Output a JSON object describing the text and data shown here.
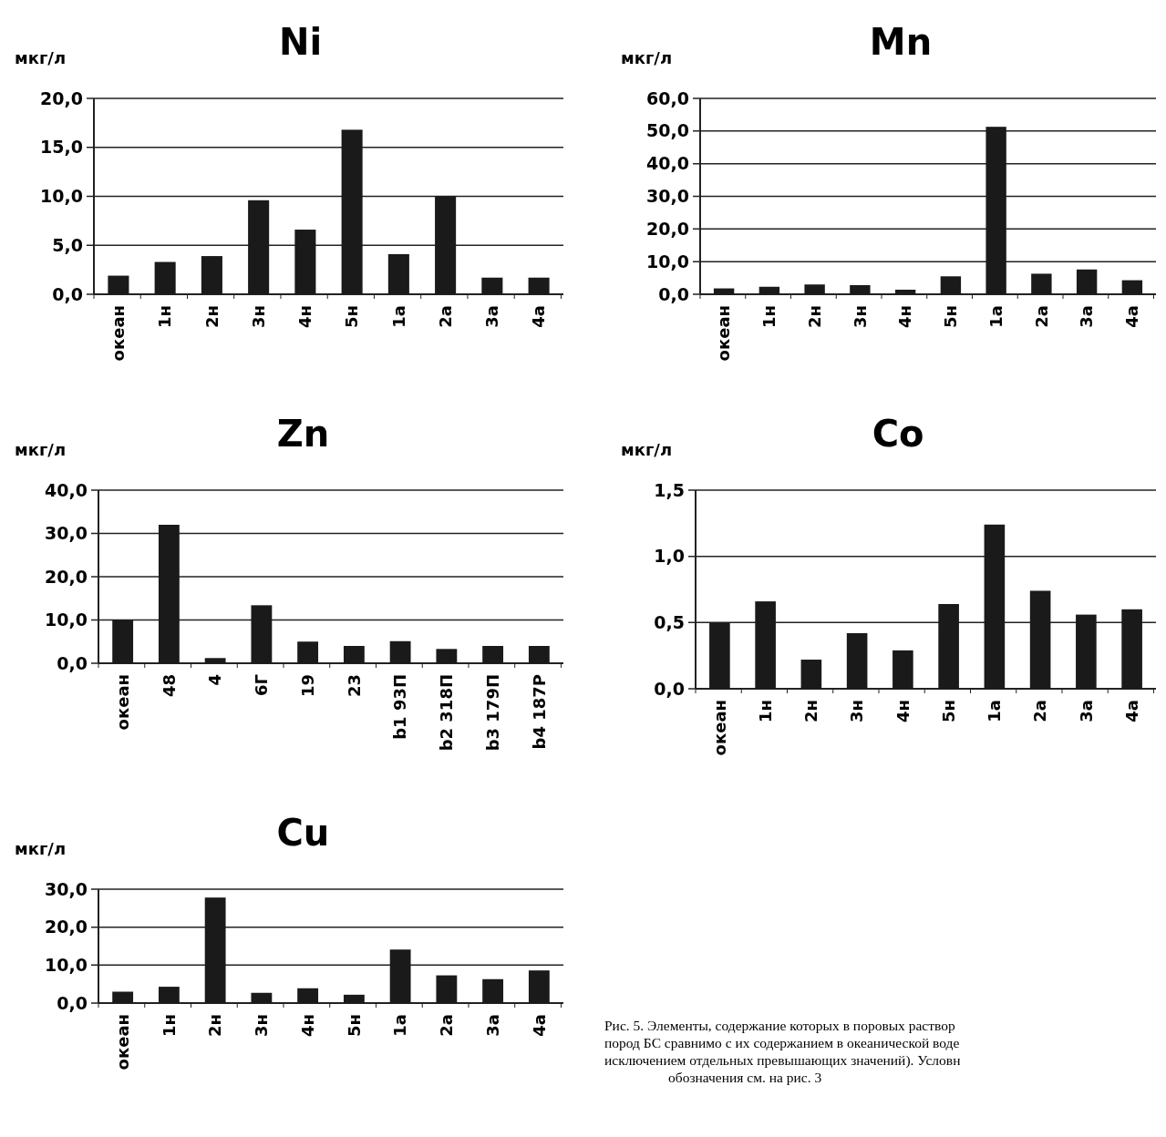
{
  "chart_data": [
    {
      "type": "bar",
      "title": "Ni",
      "ylabel": "мкг/л",
      "categories": [
        "океан",
        "1н",
        "2н",
        "3н",
        "4н",
        "5н",
        "1а",
        "2а",
        "3а",
        "4а"
      ],
      "values": [
        1.9,
        3.3,
        3.9,
        9.6,
        6.6,
        16.8,
        4.1,
        10.0,
        1.7,
        1.7
      ],
      "color": "#1a1a1a",
      "ylim": [
        0,
        20
      ],
      "yticks": [
        {
          "value": 0,
          "label": "0,0"
        },
        {
          "value": 5,
          "label": "5,0"
        },
        {
          "value": 10,
          "label": "10,0"
        },
        {
          "value": 15,
          "label": "15,0"
        },
        {
          "value": 20,
          "label": "20,0"
        }
      ],
      "grid": "y"
    },
    {
      "type": "bar",
      "title": "Mn",
      "ylabel": "мкг/л",
      "categories": [
        "океан",
        "1н",
        "2н",
        "3н",
        "4н",
        "5н",
        "1а",
        "2а",
        "3а",
        "4а"
      ],
      "values": [
        1.8,
        2.3,
        3.0,
        2.8,
        1.4,
        5.5,
        51.3,
        6.3,
        7.6,
        4.3
      ],
      "color": "#1a1a1a",
      "ylim": [
        0,
        60
      ],
      "yticks": [
        {
          "value": 0,
          "label": "0,0"
        },
        {
          "value": 10,
          "label": "10,0"
        },
        {
          "value": 20,
          "label": "20,0"
        },
        {
          "value": 30,
          "label": "30,0"
        },
        {
          "value": 40,
          "label": "40,0"
        },
        {
          "value": 50,
          "label": "50,0"
        },
        {
          "value": 60,
          "label": "60,0"
        }
      ],
      "grid": "y"
    },
    {
      "type": "bar",
      "title": "Zn",
      "ylabel": "мкг/л",
      "categories": [
        "океан",
        "48",
        "4",
        "6Г",
        "19",
        "23",
        "b1  93П",
        "b2 318П",
        "b3  179П",
        "b4 187Р"
      ],
      "values": [
        10.0,
        32.0,
        1.2,
        13.4,
        5.0,
        4.0,
        5.1,
        3.3,
        4.0,
        4.0
      ],
      "color": "#1a1a1a",
      "ylim": [
        0,
        40
      ],
      "yticks": [
        {
          "value": 0,
          "label": "0,0"
        },
        {
          "value": 10,
          "label": "10,0"
        },
        {
          "value": 20,
          "label": "20,0"
        },
        {
          "value": 30,
          "label": "30,0"
        },
        {
          "value": 40,
          "label": "40,0"
        }
      ],
      "grid": "y"
    },
    {
      "type": "bar",
      "title": "Co",
      "ylabel": "мкг/л",
      "categories": [
        "океан",
        "1н",
        "2н",
        "3н",
        "4н",
        "5н",
        "1а",
        "2а",
        "3а",
        "4а"
      ],
      "values": [
        0.5,
        0.66,
        0.22,
        0.42,
        0.29,
        0.64,
        1.24,
        0.74,
        0.56,
        0.6
      ],
      "color": "#1a1a1a",
      "ylim": [
        0,
        1.5
      ],
      "yticks": [
        {
          "value": 0,
          "label": "0,0"
        },
        {
          "value": 0.5,
          "label": "0,5"
        },
        {
          "value": 1,
          "label": "1,0"
        },
        {
          "value": 1.5,
          "label": "1,5"
        }
      ],
      "grid": "y"
    },
    {
      "type": "bar",
      "title": "Cu",
      "ylabel": "мкг/л",
      "categories": [
        "океан",
        "1н",
        "2н",
        "3н",
        "4н",
        "5н",
        "1а",
        "2а",
        "3а",
        "4а"
      ],
      "values": [
        3.0,
        4.3,
        27.8,
        2.7,
        3.9,
        2.2,
        14.1,
        7.3,
        6.3,
        8.6
      ],
      "color": "#1a1a1a",
      "ylim": [
        0,
        30
      ],
      "yticks": [
        {
          "value": 0,
          "label": "0,0"
        },
        {
          "value": 10,
          "label": "10,0"
        },
        {
          "value": 20,
          "label": "20,0"
        },
        {
          "value": 30,
          "label": "30,0"
        }
      ],
      "grid": "y",
      "annotations": [
        "Рис. 5. Элементы, содержание которых в поровых раствор\nпород БС сравнимо с их содержанием в океанической воде\nисключением отдельных превышающих значений). Условн\nобозначения см. на рис. 3"
      ]
    }
  ]
}
